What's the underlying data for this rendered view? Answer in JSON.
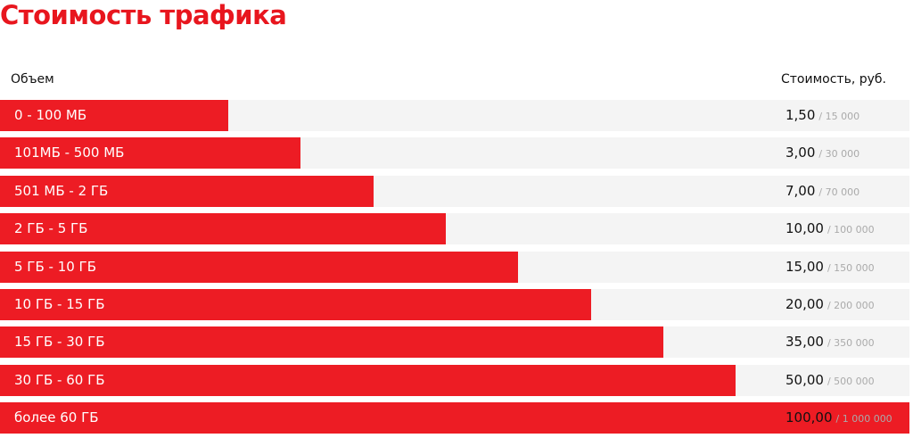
{
  "title": "Стоимость трафика",
  "table": {
    "header": [
      "Объем",
      "Стоимость, руб."
    ],
    "rows": [
      [
        "0 - 100 МБ",
        "1,50",
        "/ 15 000"
      ],
      [
        "101МБ - 500 МБ",
        "3,00",
        "/ 30 000"
      ],
      [
        "501 МБ - 2 ГБ",
        "7,00",
        "/ 70 000"
      ],
      [
        "2 ГБ - 5 ГБ",
        "10,00",
        "/ 100 000"
      ],
      [
        "5 ГБ - 10 ГБ",
        "15,00",
        "/ 150 000"
      ],
      [
        "10 ГБ - 15 ГБ",
        "20,00",
        "/ 200 000"
      ],
      [
        "15 ГБ - 30 ГБ",
        "35,00",
        "/ 350 000"
      ],
      [
        "30 ГБ - 60 ГБ",
        "50,00",
        "/ 500 000"
      ],
      [
        "более 60 ГБ",
        "100,00",
        "/ 1 000 000"
      ]
    ]
  }
}
